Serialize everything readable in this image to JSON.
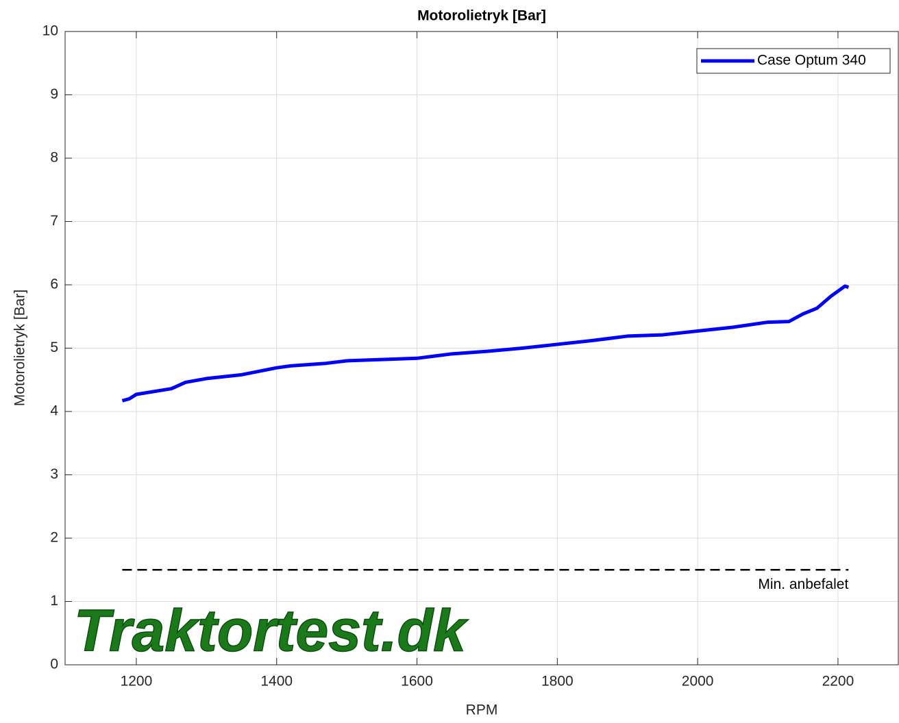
{
  "chart_data": {
    "type": "line",
    "title": "Motorolietryk [Bar]",
    "xlabel": "RPM",
    "ylabel": "Motorolietryk [Bar]",
    "x": [
      1180,
      1190,
      1200,
      1250,
      1270,
      1300,
      1350,
      1400,
      1420,
      1470,
      1500,
      1550,
      1600,
      1650,
      1700,
      1750,
      1800,
      1850,
      1900,
      1950,
      2000,
      2050,
      2100,
      2130,
      2150,
      2170,
      2190,
      2210,
      2215
    ],
    "series": [
      {
        "name": "Case Optum 340",
        "color": "#0000ff",
        "values": [
          4.17,
          4.2,
          4.27,
          4.36,
          4.46,
          4.52,
          4.58,
          4.69,
          4.72,
          4.76,
          4.8,
          4.82,
          4.84,
          4.91,
          4.95,
          5.0,
          5.06,
          5.12,
          5.19,
          5.21,
          5.27,
          5.33,
          5.41,
          5.42,
          5.54,
          5.63,
          5.82,
          5.98,
          5.96
        ]
      }
    ],
    "reference_line": {
      "value": 1.5,
      "label": "Min. anbefalet",
      "x": [
        1180,
        2215
      ],
      "color": "#000000"
    },
    "watermark": "Traktortest.dk",
    "xlim": [
      1098.5,
      2286
    ],
    "ylim": [
      0,
      10
    ],
    "xticks": [
      1200,
      1400,
      1600,
      1800,
      2000,
      2200
    ],
    "yticks": [
      0,
      1,
      2,
      3,
      4,
      5,
      6,
      7,
      8,
      9,
      10
    ],
    "grid": true,
    "legend": "upper right"
  }
}
